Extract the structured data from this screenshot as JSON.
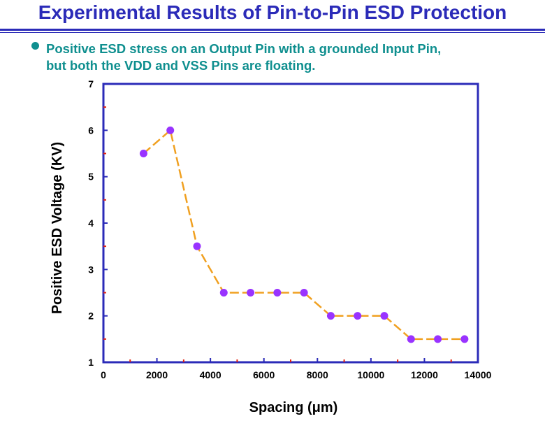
{
  "slide": {
    "title": "Experimental Results of Pin-to-Pin ESD Protection",
    "bullet_line1": "Positive ESD stress on an Output Pin with a grounded Input Pin,",
    "bullet_line2": "but both the VDD and VSS Pins are  floating."
  },
  "chart_data": {
    "type": "line",
    "title": "",
    "xlabel": "Spacing (μm)",
    "ylabel": "Positive ESD Voltage (KV)",
    "xlim": [
      0,
      14000
    ],
    "ylim": [
      1,
      7
    ],
    "xticks": [
      "0",
      "2000",
      "4000",
      "6000",
      "8000",
      "10000",
      "12000",
      "14000"
    ],
    "yticks": [
      "1",
      "2",
      "3",
      "4",
      "5",
      "6",
      "7"
    ],
    "grid": false,
    "series": [
      {
        "x": [
          1500,
          2500,
          3500,
          4500,
          5500,
          6500,
          7500,
          8500,
          9500,
          10500,
          11500,
          12500,
          13500
        ],
        "y": [
          5.5,
          6.0,
          3.5,
          2.5,
          2.5,
          2.5,
          2.5,
          2.0,
          2.0,
          2.0,
          1.5,
          1.5,
          1.5
        ]
      }
    ],
    "colors": {
      "line": "#f0a020",
      "marker": "#9933ff",
      "frame": "#2b2bb8",
      "minor_tick": "#e02010"
    }
  }
}
